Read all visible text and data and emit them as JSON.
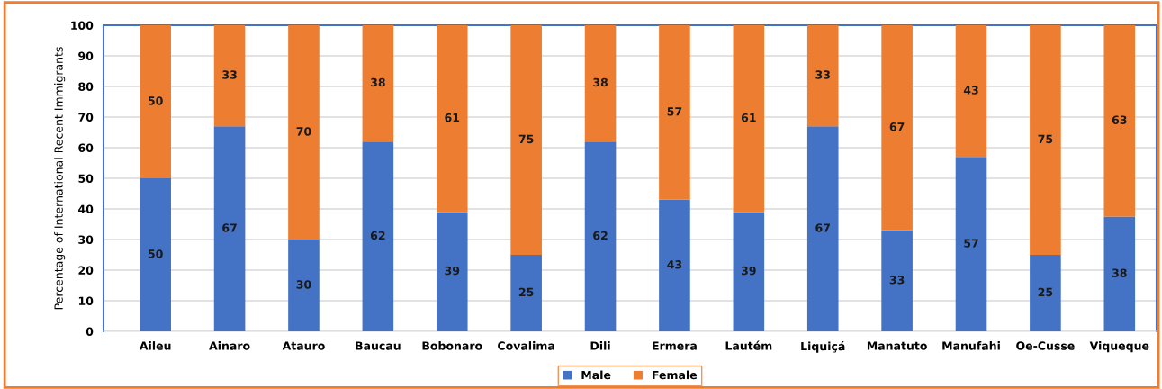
{
  "chart_data": {
    "type": "bar",
    "stacked": true,
    "ylabel": "Percentage of International Recent Immigrants",
    "categories": [
      "Aileu",
      "Ainaro",
      "Atauro",
      "Baucau",
      "Bobonaro",
      "Covalima",
      "Dili",
      "Ermera",
      "Lautém",
      "Liquiçá",
      "Manatuto",
      "Manufahi",
      "Oe-Cusse",
      "Viqueque"
    ],
    "series": [
      {
        "name": "Male",
        "color": "#4472c4",
        "values": [
          50,
          67,
          30,
          62,
          39,
          25,
          62,
          43,
          39,
          67,
          33,
          57,
          25,
          37.5
        ],
        "value_labels": [
          "50",
          "67",
          "30",
          "62",
          "39",
          "25",
          "62",
          "43",
          "39",
          "67",
          "33",
          "57",
          "25",
          "38"
        ]
      },
      {
        "name": "Female",
        "color": "#ed7d31",
        "values": [
          50,
          33,
          70,
          38,
          61,
          75,
          38,
          57,
          61,
          33,
          67,
          43,
          75,
          62.5
        ],
        "value_labels": [
          "50",
          "33",
          "70",
          "38",
          "61",
          "75",
          "38",
          "57",
          "61",
          "33",
          "67",
          "43",
          "75",
          "63"
        ]
      }
    ],
    "ylim": [
      0,
      100
    ],
    "yticks": [
      0,
      10,
      20,
      30,
      40,
      50,
      60,
      70,
      80,
      90,
      100
    ],
    "grid": "y",
    "legend": "bottom"
  }
}
